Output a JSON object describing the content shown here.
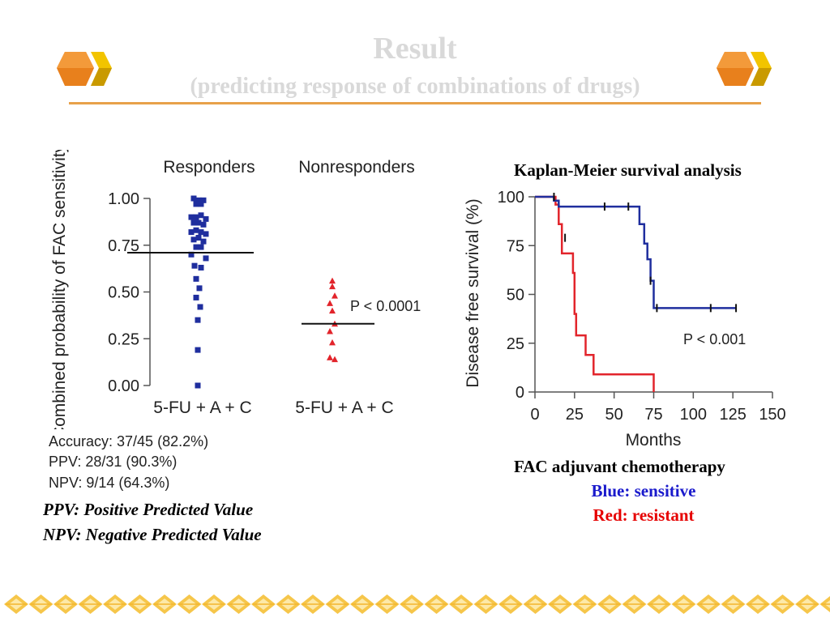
{
  "slide": {
    "title": "Result",
    "subtitle": "(predicting response of combinations of drugs)",
    "km_caption": "Kaplan-Meier survival analysis",
    "fac_caption": "FAC adjuvant chemotherapy",
    "legend_blue": "Blue: sensitive",
    "legend_red": "Red: resistant",
    "note_ppv": "PPV: Positive Predicted Value",
    "note_npv": "NPV: Negative Predicted Value",
    "stats": [
      "Accuracy: 37/45 (82.2%)",
      "PPV: 28/31 (90.3%)",
      "NPV: 9/14 (64.3%)"
    ],
    "colors": {
      "title": "#d9d9d9",
      "rule": "#e8a14a",
      "blue": "#1f2e9e",
      "red": "#e2242b",
      "logo_orange": "#e8801c",
      "logo_yellow": "#f2c400"
    }
  },
  "chart_data": [
    {
      "type": "scatter",
      "ylabel": "Combined probability of FAC sensitivity",
      "ylim": [
        0,
        1
      ],
      "yticks": [
        "0.00",
        "0.25",
        "0.50",
        "0.75",
        "1.00"
      ],
      "yticks_values": [
        0,
        0.25,
        0.5,
        0.75,
        1.0
      ],
      "group_labels": [
        "Responders",
        "Nonresponders"
      ],
      "categories": [
        "5-FU + A + C",
        "5-FU + A + C"
      ],
      "annotation": "P < 0.0001",
      "series": [
        {
          "color": "#1f2e9e",
          "marker": "square",
          "median": 0.71,
          "points": [
            [
              -0.6,
              1.0
            ],
            [
              0.0,
              0.99
            ],
            [
              0.6,
              0.99
            ],
            [
              -0.3,
              0.97
            ],
            [
              0.3,
              0.97
            ],
            [
              -0.9,
              0.9
            ],
            [
              -0.3,
              0.9
            ],
            [
              0.3,
              0.91
            ],
            [
              0.9,
              0.89
            ],
            [
              -0.6,
              0.87
            ],
            [
              0.0,
              0.87
            ],
            [
              0.6,
              0.86
            ],
            [
              -0.9,
              0.82
            ],
            [
              -0.3,
              0.83
            ],
            [
              0.3,
              0.82
            ],
            [
              0.9,
              0.81
            ],
            [
              -0.6,
              0.78
            ],
            [
              0.0,
              0.79
            ],
            [
              0.6,
              0.77
            ],
            [
              -0.3,
              0.74
            ],
            [
              0.3,
              0.74
            ],
            [
              -0.9,
              0.7
            ],
            [
              0.9,
              0.68
            ],
            [
              -0.5,
              0.64
            ],
            [
              0.3,
              0.63
            ],
            [
              -0.3,
              0.57
            ],
            [
              0.1,
              0.52
            ],
            [
              -0.3,
              0.47
            ],
            [
              0.2,
              0.42
            ],
            [
              -0.1,
              0.35
            ],
            [
              -0.1,
              0.19
            ],
            [
              -0.1,
              0.0
            ]
          ]
        },
        {
          "color": "#e2242b",
          "marker": "triangle",
          "median": 0.33,
          "points": [
            [
              0.0,
              0.56
            ],
            [
              0.0,
              0.53
            ],
            [
              0.3,
              0.48
            ],
            [
              -0.3,
              0.44
            ],
            [
              0.0,
              0.4
            ],
            [
              0.3,
              0.33
            ],
            [
              -0.3,
              0.29
            ],
            [
              0.0,
              0.23
            ],
            [
              -0.3,
              0.15
            ],
            [
              0.3,
              0.14
            ]
          ]
        }
      ]
    },
    {
      "type": "line",
      "title": "Kaplan-Meier survival analysis",
      "xlabel": "Months",
      "ylabel": "Disease free survival (%)",
      "xlim": [
        0,
        150
      ],
      "ylim": [
        0,
        100
      ],
      "xticks": [
        "0",
        "25",
        "50",
        "75",
        "100",
        "125",
        "150"
      ],
      "xticks_values": [
        0,
        25,
        50,
        75,
        100,
        125,
        150
      ],
      "yticks": [
        "0",
        "25",
        "50",
        "75",
        "100"
      ],
      "yticks_values": [
        0,
        25,
        50,
        75,
        100
      ],
      "annotation": "P < 0.001",
      "series": [
        {
          "color": "#1f2e9e",
          "steps": [
            [
              0,
              100
            ],
            [
              12,
              100
            ],
            [
              12,
              98
            ],
            [
              15,
              98
            ],
            [
              15,
              95
            ],
            [
              62,
              95
            ],
            [
              66,
              95
            ],
            [
              66,
              86
            ],
            [
              69,
              86
            ],
            [
              69,
              76
            ],
            [
              71,
              76
            ],
            [
              71,
              68
            ],
            [
              73,
              68
            ],
            [
              73,
              57
            ],
            [
              75,
              57
            ],
            [
              75,
              43
            ],
            [
              127,
              43
            ]
          ],
          "censored": [
            [
              12,
              100
            ],
            [
              44,
              95
            ],
            [
              59,
              95
            ],
            [
              73,
              57
            ],
            [
              77,
              43
            ],
            [
              111,
              43
            ],
            [
              127,
              43
            ]
          ]
        },
        {
          "color": "#e2242b",
          "steps": [
            [
              0,
              100
            ],
            [
              13,
              100
            ],
            [
              13,
              96
            ],
            [
              15,
              96
            ],
            [
              15,
              86
            ],
            [
              17,
              86
            ],
            [
              17,
              71
            ],
            [
              24,
              71
            ],
            [
              24,
              61
            ],
            [
              25,
              61
            ],
            [
              25,
              40
            ],
            [
              26,
              40
            ],
            [
              26,
              29
            ],
            [
              32,
              29
            ],
            [
              32,
              19
            ],
            [
              37,
              19
            ],
            [
              37,
              9
            ],
            [
              75,
              9
            ],
            [
              75,
              0
            ]
          ],
          "censored": [
            [
              19,
              79
            ]
          ]
        }
      ]
    }
  ]
}
